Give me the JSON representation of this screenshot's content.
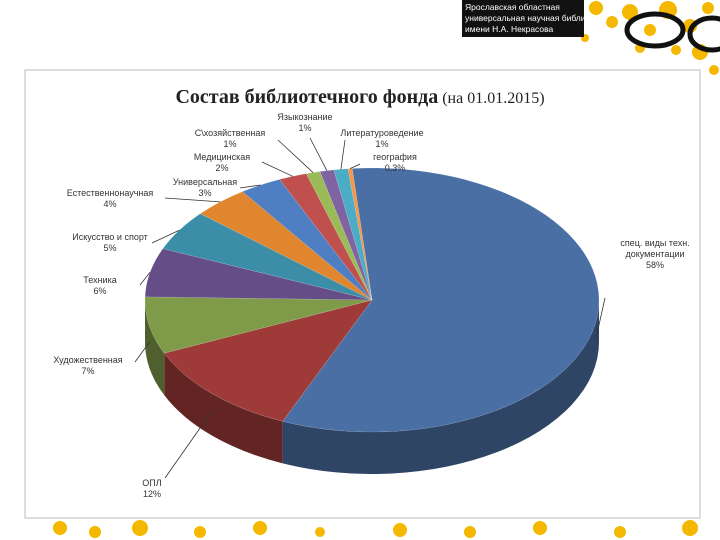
{
  "header": {
    "lines": [
      "Ярославская областная",
      "универсальная научная библиотека",
      "имени Н.А. Некрасова"
    ]
  },
  "chart_data": {
    "type": "pie",
    "title": "Состав библиотечного фонда",
    "subtitle": "(на 01.01.2015)",
    "categories": [
      "спец. виды техн. документации",
      "ОПЛ",
      "Художественная",
      "Техника",
      "Искусство и спорт",
      "Естественнонаучная",
      "Универсальная",
      "Медицинская",
      "С\\хозяйственная",
      "Языкознание",
      "Литературоведение",
      "география"
    ],
    "values": [
      58,
      12,
      7,
      6,
      5,
      4,
      3,
      2,
      1,
      1,
      1,
      0.3
    ],
    "value_labels": [
      "58%",
      "12%",
      "7%",
      "6%",
      "5%",
      "4%",
      "3%",
      "2%",
      "1%",
      "1%",
      "1%",
      "0,3%"
    ],
    "colors": [
      "#4a6fa5",
      "#9e3b38",
      "#7f9a48",
      "#654d87",
      "#3c8ea8",
      "#e0862e",
      "#4f7ec2",
      "#c0504d",
      "#9bbb59",
      "#8064a2",
      "#4bacc6",
      "#f79646"
    ]
  }
}
